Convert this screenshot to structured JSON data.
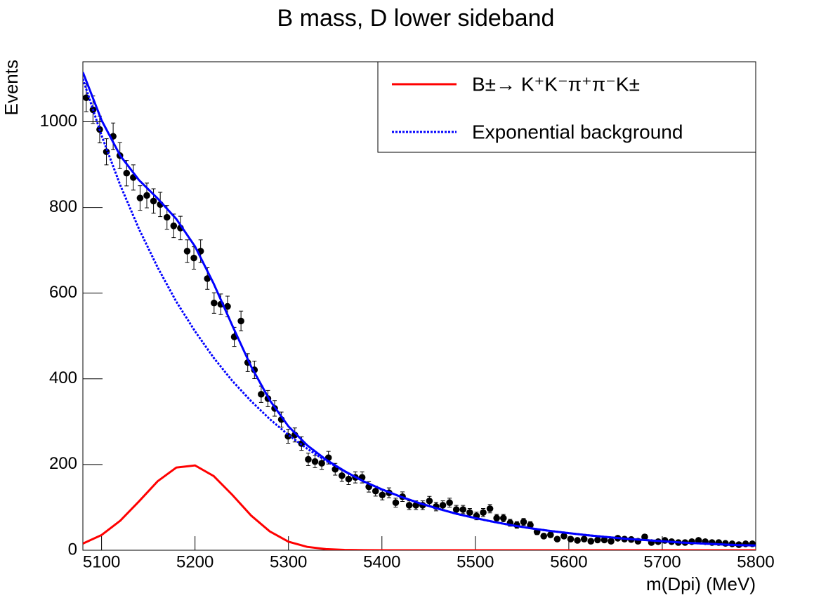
{
  "chart_data": {
    "type": "scatter",
    "title": "B mass, D lower sideband",
    "x_label": "m(Dpi) (MeV)",
    "y_label": "Events",
    "xlim": [
      5080,
      5800
    ],
    "ylim": [
      0,
      1140
    ],
    "xticks": [
      5100,
      5200,
      5300,
      5400,
      5500,
      5600,
      5700,
      5800
    ],
    "yticks": [
      0,
      200,
      400,
      600,
      800,
      1000
    ],
    "legend": "top-right",
    "points": {
      "color": "#000000",
      "x": [
        5083.6,
        5090.8,
        5098,
        5105.2,
        5112.4,
        5119.6,
        5126.8,
        5134,
        5141.2,
        5148.4,
        5155.6,
        5162.8,
        5170,
        5177.2,
        5184.4,
        5191.6,
        5198.8,
        5206,
        5213.2,
        5220.4,
        5227.6,
        5234.8,
        5242,
        5249.2,
        5256.4,
        5263.6,
        5270.8,
        5278,
        5285.2,
        5292.4,
        5299.6,
        5306.8,
        5314,
        5321.2,
        5328.4,
        5335.6,
        5342.8,
        5350,
        5357.2,
        5364.4,
        5371.6,
        5378.8,
        5386,
        5393.2,
        5400.4,
        5407.6,
        5414.8,
        5422,
        5429.2,
        5436.4,
        5443.6,
        5450.8,
        5458,
        5465.2,
        5472.4,
        5479.6,
        5486.8,
        5494,
        5501.2,
        5508.4,
        5515.6,
        5522.8,
        5530,
        5537.2,
        5544.4,
        5551.6,
        5558.8,
        5566,
        5573.2,
        5580.4,
        5587.6,
        5594.8,
        5602,
        5609.2,
        5616.4,
        5623.6,
        5630.8,
        5638,
        5645.2,
        5652.4,
        5659.6,
        5666.8,
        5674,
        5681.2,
        5688.4,
        5695.6,
        5702.8,
        5710,
        5717.2,
        5724.4,
        5731.6,
        5738.8,
        5746,
        5753.2,
        5760.4,
        5767.6,
        5774.8,
        5782,
        5789.2,
        5796.4
      ],
      "values": [
        1056,
        1028,
        982,
        930,
        966,
        921,
        880,
        870,
        822,
        828,
        815,
        807,
        777,
        757,
        752,
        698,
        682,
        698,
        634,
        577,
        574,
        569,
        498,
        535,
        438,
        421,
        364,
        354,
        331,
        305,
        266,
        269,
        249,
        212,
        207,
        203,
        216,
        189,
        174,
        166,
        170,
        170,
        148,
        138,
        129,
        134,
        111,
        125,
        105,
        105,
        105,
        115,
        102,
        105,
        111,
        95,
        95,
        88,
        80,
        88,
        97,
        75,
        75,
        64,
        59,
        66,
        59,
        43,
        33,
        36,
        26,
        33,
        26,
        23,
        26,
        21,
        24,
        24,
        21,
        28,
        26,
        25,
        21,
        31,
        18,
        20,
        23,
        20,
        18,
        18,
        20,
        23,
        20,
        18,
        18,
        16,
        15,
        13,
        15,
        15
      ],
      "errors": [
        32.5,
        32.1,
        31.3,
        30.5,
        31.1,
        30.3,
        29.7,
        29.5,
        28.7,
        28.8,
        28.5,
        28.4,
        27.9,
        27.5,
        27.4,
        26.4,
        26.1,
        26.4,
        25.2,
        24,
        24,
        23.9,
        22.3,
        23.1,
        20.9,
        20.5,
        19.1,
        18.8,
        18.2,
        17.5,
        16.3,
        16.4,
        15.8,
        14.6,
        14.4,
        14.2,
        14.7,
        13.7,
        13.2,
        12.9,
        13,
        13,
        12.2,
        11.7,
        11.4,
        11.6,
        10.5,
        11.2,
        10.2,
        10.2,
        10.2,
        10.7,
        10.1,
        10.2,
        10.5,
        9.7,
        9.7,
        9.4,
        8.9,
        9.4,
        9.8,
        8.7,
        8.7,
        8,
        7.7,
        8.1,
        7.7,
        6.6,
        5.7,
        6,
        5.1,
        5.7,
        5.1,
        4.8,
        5.1,
        4.6,
        4.9,
        4.9,
        4.6,
        5.3,
        5.1,
        5,
        4.6,
        5.6,
        4.2,
        4.5,
        4.8,
        4.5,
        4.2,
        4.2,
        4.5,
        4.8,
        4.5,
        4.2,
        4.2,
        4,
        3.9,
        3.6,
        3.9,
        3.9
      ]
    },
    "curve_x": [
      5080,
      5100,
      5120,
      5140,
      5160,
      5180,
      5200,
      5220,
      5240,
      5260,
      5280,
      5300,
      5320,
      5340,
      5360,
      5380,
      5400,
      5420,
      5440,
      5460,
      5480,
      5500,
      5520,
      5540,
      5560,
      5580,
      5600,
      5620,
      5640,
      5660,
      5680,
      5700,
      5720,
      5740,
      5760,
      5780,
      5800
    ],
    "series": [
      {
        "name": "B±→ K⁺K⁻π⁺π⁻K±",
        "color": "#ff0000",
        "style": "solid",
        "values": [
          15.6,
          35.5,
          68.9,
          114,
          161,
          193,
          198,
          173,
          129,
          81,
          44,
          20,
          7.9,
          2.7,
          0.8,
          0.2,
          0,
          0,
          0,
          0,
          0,
          0,
          0,
          0,
          0,
          0,
          0,
          0,
          0,
          0,
          0,
          0,
          0,
          0,
          0,
          0,
          0
        ]
      },
      {
        "name": "Exponential background",
        "color": "#0000ff",
        "style": "dotted",
        "values": [
          1100,
          968,
          852,
          750,
          660,
          580,
          511,
          449,
          395,
          348,
          306,
          269,
          237,
          209,
          184,
          161,
          142,
          125,
          110,
          97,
          85,
          75,
          66,
          58,
          51,
          45,
          40,
          35,
          31,
          27,
          24,
          21,
          18,
          16,
          14,
          12,
          11
        ]
      },
      {
        "color": "#0000ff",
        "style": "solid",
        "values": [
          1115.6,
          1003.5,
          920.9,
          864,
          821,
          773,
          709,
          622,
          524,
          429,
          350,
          289,
          244.9,
          211.7,
          184.8,
          161.2,
          142,
          125,
          110,
          97,
          85,
          75,
          66,
          58,
          51,
          45,
          40,
          35,
          31,
          27,
          24,
          21,
          18,
          16,
          14,
          12,
          11
        ]
      }
    ]
  }
}
